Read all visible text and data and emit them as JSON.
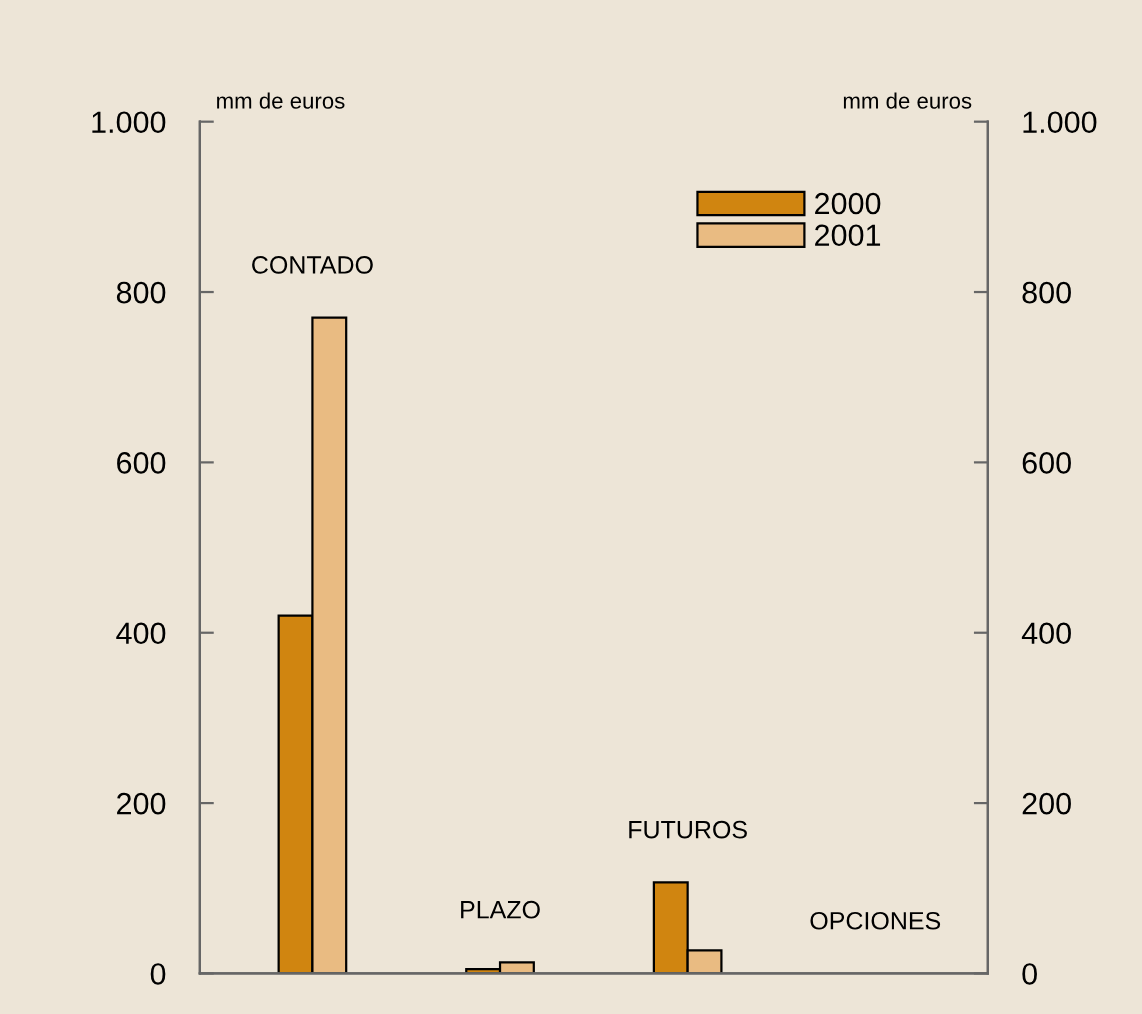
{
  "chart_data": {
    "type": "bar",
    "categories": [
      "CONTADO",
      "PLAZO",
      "FUTUROS",
      "OPCIONES"
    ],
    "series": [
      {
        "name": "2000",
        "color": "#d08510",
        "values": [
          420,
          5,
          107,
          null
        ]
      },
      {
        "name": "2001",
        "color": "#e9bb82",
        "values": [
          770,
          13,
          27,
          null
        ]
      }
    ],
    "ylabel": "mm de euros",
    "y2label": "mm de euros",
    "ylim": [
      0,
      1000
    ],
    "yticks": [
      0,
      200,
      400,
      600,
      800,
      {
        "value": 1000,
        "label": "1.000"
      }
    ],
    "y2lim": [
      0,
      1000
    ],
    "y2ticks": [
      0,
      200,
      400,
      600,
      800,
      {
        "value": 1000,
        "label": "1.000"
      }
    ],
    "grid": false,
    "legend": "top right"
  }
}
